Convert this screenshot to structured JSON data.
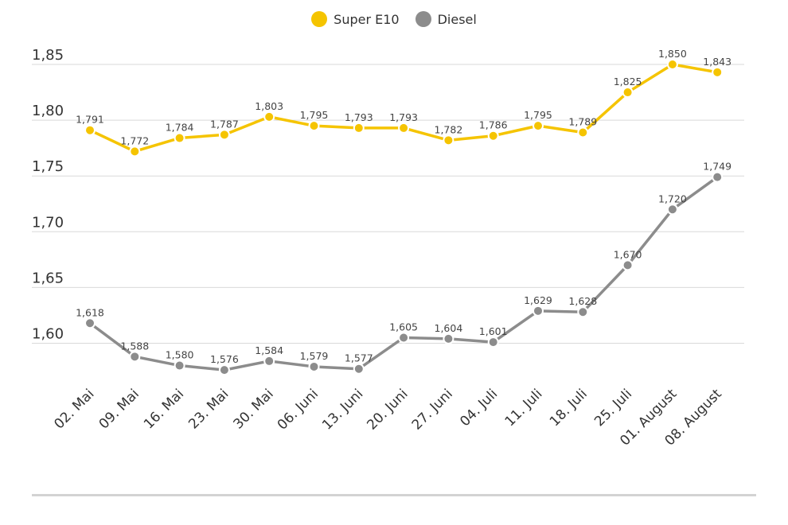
{
  "chart_data": {
    "type": "line",
    "categories": [
      "02. Mai",
      "09. Mai",
      "16. Mai",
      "23. Mai",
      "30. Mai",
      "06. Juni",
      "13. Juni",
      "20. Juni",
      "27. Juni",
      "04. Juli",
      "11. Juli",
      "18. Juli",
      "25. Juli",
      "01. August",
      "08. August"
    ],
    "series": [
      {
        "name": "Super E10",
        "color": "#f5c400",
        "values": [
          1.791,
          1.772,
          1.784,
          1.787,
          1.803,
          1.795,
          1.793,
          1.793,
          1.782,
          1.786,
          1.795,
          1.789,
          1.825,
          1.85,
          1.843
        ],
        "labels": [
          "1,791",
          "1,772",
          "1,784",
          "1,787",
          "1,803",
          "1,795",
          "1,793",
          "1,793",
          "1,782",
          "1,786",
          "1,795",
          "1,789",
          "1,825",
          "1,850",
          "1,843"
        ]
      },
      {
        "name": "Diesel",
        "color": "#8c8c8c",
        "values": [
          1.618,
          1.588,
          1.58,
          1.576,
          1.584,
          1.579,
          1.577,
          1.605,
          1.604,
          1.601,
          1.629,
          1.628,
          1.67,
          1.72,
          1.749
        ],
        "labels": [
          "1,618",
          "1,588",
          "1,580",
          "1,576",
          "1,584",
          "1,579",
          "1,577",
          "1,605",
          "1,604",
          "1,601",
          "1,629",
          "1,628",
          "1,670",
          "1,720",
          "1,749"
        ]
      }
    ],
    "yticks": [
      1.6,
      1.65,
      1.7,
      1.75,
      1.8,
      1.85
    ],
    "ytick_labels": [
      "1,60",
      "1,65",
      "1,70",
      "1,75",
      "1,80",
      "1,85"
    ],
    "ylim": [
      1.55,
      1.85
    ],
    "grid": true,
    "legend": "top-center"
  }
}
